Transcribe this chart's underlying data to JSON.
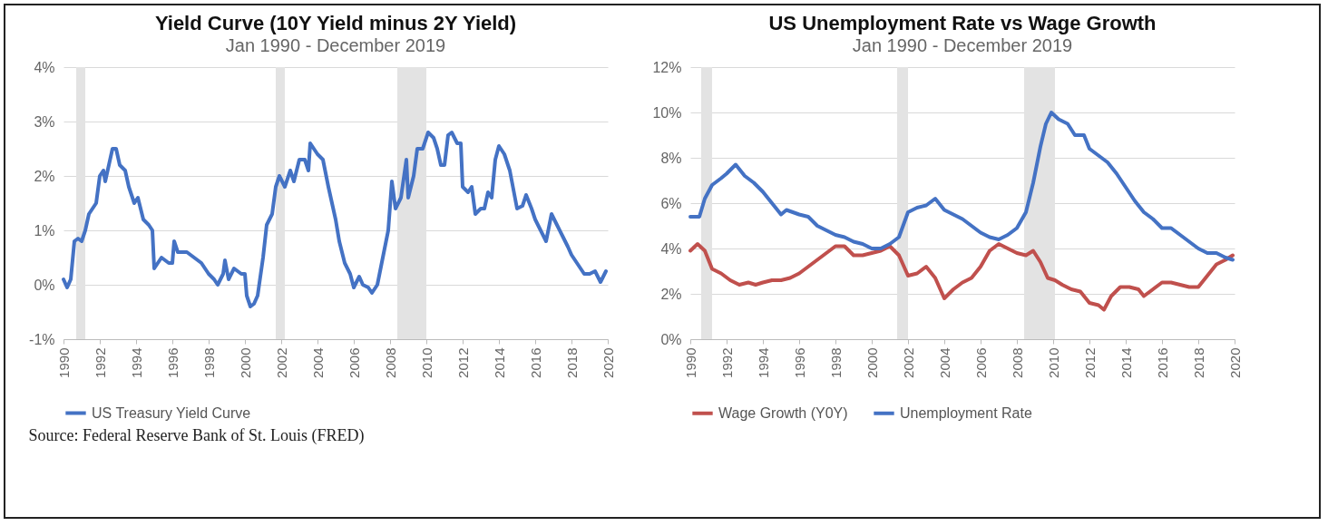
{
  "chart_data": [
    {
      "type": "line",
      "title": "Yield Curve (10Y Yield minus 2Y Yield)",
      "subtitle": "Jan 1990 - December 2019",
      "grid": "y",
      "legend": "bottom",
      "line_style": "solid",
      "marker": "none",
      "annotations": [
        "Source: Federal Reserve Bank of St. Louis (FRED)"
      ],
      "xlim": [
        1990,
        2020
      ],
      "xticks": [
        1990,
        1992,
        1994,
        1996,
        1998,
        2000,
        2002,
        2004,
        2006,
        2008,
        2010,
        2012,
        2014,
        2016,
        2018,
        2020
      ],
      "ylim": [
        -1,
        4
      ],
      "yticks": [
        {
          "value": -1,
          "label": "-1%"
        },
        {
          "value": 0,
          "label": "0%"
        },
        {
          "value": 1,
          "label": "1%"
        },
        {
          "value": 2,
          "label": "2%"
        },
        {
          "value": 3,
          "label": "3%"
        },
        {
          "value": 4,
          "label": "4%"
        }
      ],
      "bands": [
        {
          "axis": "x",
          "from": 1990.7,
          "to": 1991.2,
          "color": "#e3e3e3"
        },
        {
          "axis": "x",
          "from": 2001.7,
          "to": 2002.2,
          "color": "#e3e3e3"
        },
        {
          "axis": "x",
          "from": 2008.4,
          "to": 2010.0,
          "color": "#e3e3e3"
        }
      ],
      "x": [
        1990.0,
        1990.2,
        1990.4,
        1990.6,
        1990.8,
        1991.0,
        1991.2,
        1991.4,
        1991.8,
        1992.0,
        1992.2,
        1992.3,
        1992.5,
        1992.7,
        1992.9,
        1993.1,
        1993.4,
        1993.6,
        1993.9,
        1994.1,
        1994.4,
        1994.7,
        1994.9,
        1995.0,
        1995.4,
        1995.8,
        1996.0,
        1996.1,
        1996.3,
        1996.8,
        1997.2,
        1997.6,
        1998.0,
        1998.3,
        1998.5,
        1998.8,
        1998.9,
        1999.1,
        1999.4,
        1999.8,
        2000.0,
        2000.1,
        2000.3,
        2000.5,
        2000.7,
        2001.0,
        2001.2,
        2001.5,
        2001.7,
        2001.9,
        2002.2,
        2002.5,
        2002.7,
        2003.0,
        2003.3,
        2003.5,
        2003.6,
        2003.8,
        2004.0,
        2004.3,
        2004.6,
        2005.0,
        2005.2,
        2005.5,
        2005.8,
        2006.0,
        2006.3,
        2006.5,
        2006.8,
        2007.0,
        2007.3,
        2007.6,
        2007.9,
        2008.1,
        2008.3,
        2008.6,
        2008.9,
        2009.0,
        2009.3,
        2009.5,
        2009.8,
        2010.1,
        2010.4,
        2010.6,
        2010.8,
        2011.0,
        2011.2,
        2011.4,
        2011.7,
        2011.9,
        2012.0,
        2012.3,
        2012.5,
        2012.7,
        2013.0,
        2013.2,
        2013.4,
        2013.6,
        2013.8,
        2014.0,
        2014.3,
        2014.6,
        2015.0,
        2015.3,
        2015.5,
        2015.8,
        2016.0,
        2016.3,
        2016.6,
        2016.9,
        2017.2,
        2017.5,
        2017.8,
        2018.0,
        2018.3,
        2018.7,
        2019.0,
        2019.3,
        2019.6,
        2019.9
      ],
      "series": [
        {
          "name": "US Treasury Yield Curve",
          "color": "#4472c4",
          "values": [
            0.1,
            -0.05,
            0.1,
            0.8,
            0.85,
            0.8,
            1.0,
            1.3,
            1.5,
            2.0,
            2.1,
            1.9,
            2.2,
            2.5,
            2.5,
            2.2,
            2.1,
            1.8,
            1.5,
            1.6,
            1.2,
            1.1,
            1.0,
            0.3,
            0.5,
            0.4,
            0.4,
            0.8,
            0.6,
            0.6,
            0.5,
            0.4,
            0.2,
            0.1,
            0.0,
            0.2,
            0.45,
            0.1,
            0.3,
            0.2,
            0.2,
            -0.2,
            -0.4,
            -0.35,
            -0.2,
            0.5,
            1.1,
            1.3,
            1.8,
            2.0,
            1.8,
            2.1,
            1.9,
            2.3,
            2.3,
            2.1,
            2.6,
            2.5,
            2.4,
            2.3,
            1.8,
            1.2,
            0.8,
            0.4,
            0.2,
            -0.05,
            0.15,
            0.0,
            -0.05,
            -0.15,
            0.0,
            0.5,
            1.0,
            1.9,
            1.4,
            1.6,
            2.3,
            1.6,
            2.0,
            2.5,
            2.5,
            2.8,
            2.7,
            2.5,
            2.2,
            2.2,
            2.75,
            2.8,
            2.6,
            2.6,
            1.8,
            1.7,
            1.8,
            1.3,
            1.4,
            1.4,
            1.7,
            1.6,
            2.3,
            2.55,
            2.4,
            2.1,
            1.4,
            1.45,
            1.65,
            1.4,
            1.2,
            1.0,
            0.8,
            1.3,
            1.1,
            0.9,
            0.7,
            0.55,
            0.4,
            0.2,
            0.2,
            0.25,
            0.05,
            0.25
          ]
        }
      ]
    },
    {
      "type": "line",
      "title": "US Unemployment Rate vs Wage Growth",
      "subtitle": "Jan 1990 - December 2019",
      "grid": "y",
      "legend": "bottom",
      "line_style": "solid",
      "marker": "none",
      "xlim": [
        1990,
        2020
      ],
      "xticks": [
        1990,
        1992,
        1994,
        1996,
        1998,
        2000,
        2002,
        2004,
        2006,
        2008,
        2010,
        2012,
        2014,
        2016,
        2018,
        2020
      ],
      "ylim": [
        0,
        12
      ],
      "yticks": [
        {
          "value": 0,
          "label": "0%"
        },
        {
          "value": 2,
          "label": "2%"
        },
        {
          "value": 4,
          "label": "4%"
        },
        {
          "value": 6,
          "label": "6%"
        },
        {
          "value": 8,
          "label": "8%"
        },
        {
          "value": 10,
          "label": "10%"
        },
        {
          "value": 12,
          "label": "12%"
        }
      ],
      "bands": [
        {
          "axis": "x",
          "from": 1990.6,
          "to": 1991.2,
          "color": "#e3e3e3"
        },
        {
          "axis": "x",
          "from": 2001.4,
          "to": 2002.0,
          "color": "#e3e3e3"
        },
        {
          "axis": "x",
          "from": 2008.4,
          "to": 2010.1,
          "color": "#e3e3e3"
        }
      ],
      "series": [
        {
          "name": "Wage Growth (Y0Y)",
          "color": "#c0504d",
          "x": [
            1990.0,
            1990.4,
            1990.8,
            1991.2,
            1991.7,
            1992.2,
            1992.7,
            1993.2,
            1993.6,
            1994.0,
            1994.5,
            1995.0,
            1995.5,
            1996.0,
            1996.5,
            1997.0,
            1997.5,
            1998.0,
            1998.5,
            1999.0,
            1999.5,
            2000.0,
            2000.5,
            2001.0,
            2001.5,
            2002.0,
            2002.5,
            2003.0,
            2003.5,
            2004.0,
            2004.5,
            2005.0,
            2005.5,
            2006.0,
            2006.5,
            2007.0,
            2007.5,
            2008.0,
            2008.5,
            2008.9,
            2009.3,
            2009.7,
            2010.1,
            2010.5,
            2011.0,
            2011.5,
            2012.0,
            2012.5,
            2012.8,
            2013.2,
            2013.7,
            2014.2,
            2014.7,
            2015.0,
            2015.5,
            2016.0,
            2016.5,
            2017.0,
            2017.5,
            2018.0,
            2018.5,
            2019.0,
            2019.5,
            2019.9
          ],
          "values": [
            3.9,
            4.2,
            3.9,
            3.1,
            2.9,
            2.6,
            2.4,
            2.5,
            2.4,
            2.5,
            2.6,
            2.6,
            2.7,
            2.9,
            3.2,
            3.5,
            3.8,
            4.1,
            4.1,
            3.7,
            3.7,
            3.8,
            3.9,
            4.1,
            3.7,
            2.8,
            2.9,
            3.2,
            2.7,
            1.8,
            2.2,
            2.5,
            2.7,
            3.2,
            3.9,
            4.2,
            4.0,
            3.8,
            3.7,
            3.9,
            3.4,
            2.7,
            2.6,
            2.4,
            2.2,
            2.1,
            1.6,
            1.5,
            1.3,
            1.9,
            2.3,
            2.3,
            2.2,
            1.9,
            2.2,
            2.5,
            2.5,
            2.4,
            2.3,
            2.3,
            2.8,
            3.3,
            3.5,
            3.7
          ]
        },
        {
          "name": "Unemployment Rate",
          "color": "#4472c4",
          "x": [
            1990.0,
            1990.5,
            1990.8,
            1991.2,
            1991.7,
            1992.0,
            1992.5,
            1993.0,
            1993.5,
            1994.0,
            1994.5,
            1995.0,
            1995.3,
            1996.0,
            1996.5,
            1997.0,
            1997.5,
            1998.0,
            1998.5,
            1999.0,
            1999.5,
            2000.0,
            2000.5,
            2001.0,
            2001.5,
            2002.0,
            2002.5,
            2003.0,
            2003.5,
            2004.0,
            2004.5,
            2005.0,
            2005.5,
            2006.0,
            2006.5,
            2007.0,
            2007.5,
            2008.0,
            2008.5,
            2008.9,
            2009.3,
            2009.6,
            2009.9,
            2010.3,
            2010.8,
            2011.2,
            2011.7,
            2012.0,
            2012.5,
            2013.0,
            2013.5,
            2014.0,
            2014.5,
            2015.0,
            2015.5,
            2016.0,
            2016.5,
            2017.0,
            2017.5,
            2018.0,
            2018.5,
            2019.0,
            2019.5,
            2019.9
          ],
          "values": [
            5.4,
            5.4,
            6.2,
            6.8,
            7.1,
            7.3,
            7.7,
            7.2,
            6.9,
            6.5,
            6.0,
            5.5,
            5.7,
            5.5,
            5.4,
            5.0,
            4.8,
            4.6,
            4.5,
            4.3,
            4.2,
            4.0,
            4.0,
            4.2,
            4.5,
            5.6,
            5.8,
            5.9,
            6.2,
            5.7,
            5.5,
            5.3,
            5.0,
            4.7,
            4.5,
            4.4,
            4.6,
            4.9,
            5.6,
            6.9,
            8.5,
            9.5,
            10.0,
            9.7,
            9.5,
            9.0,
            9.0,
            8.4,
            8.1,
            7.8,
            7.3,
            6.7,
            6.1,
            5.6,
            5.3,
            4.9,
            4.9,
            4.6,
            4.3,
            4.0,
            3.8,
            3.8,
            3.6,
            3.5
          ]
        }
      ]
    }
  ]
}
